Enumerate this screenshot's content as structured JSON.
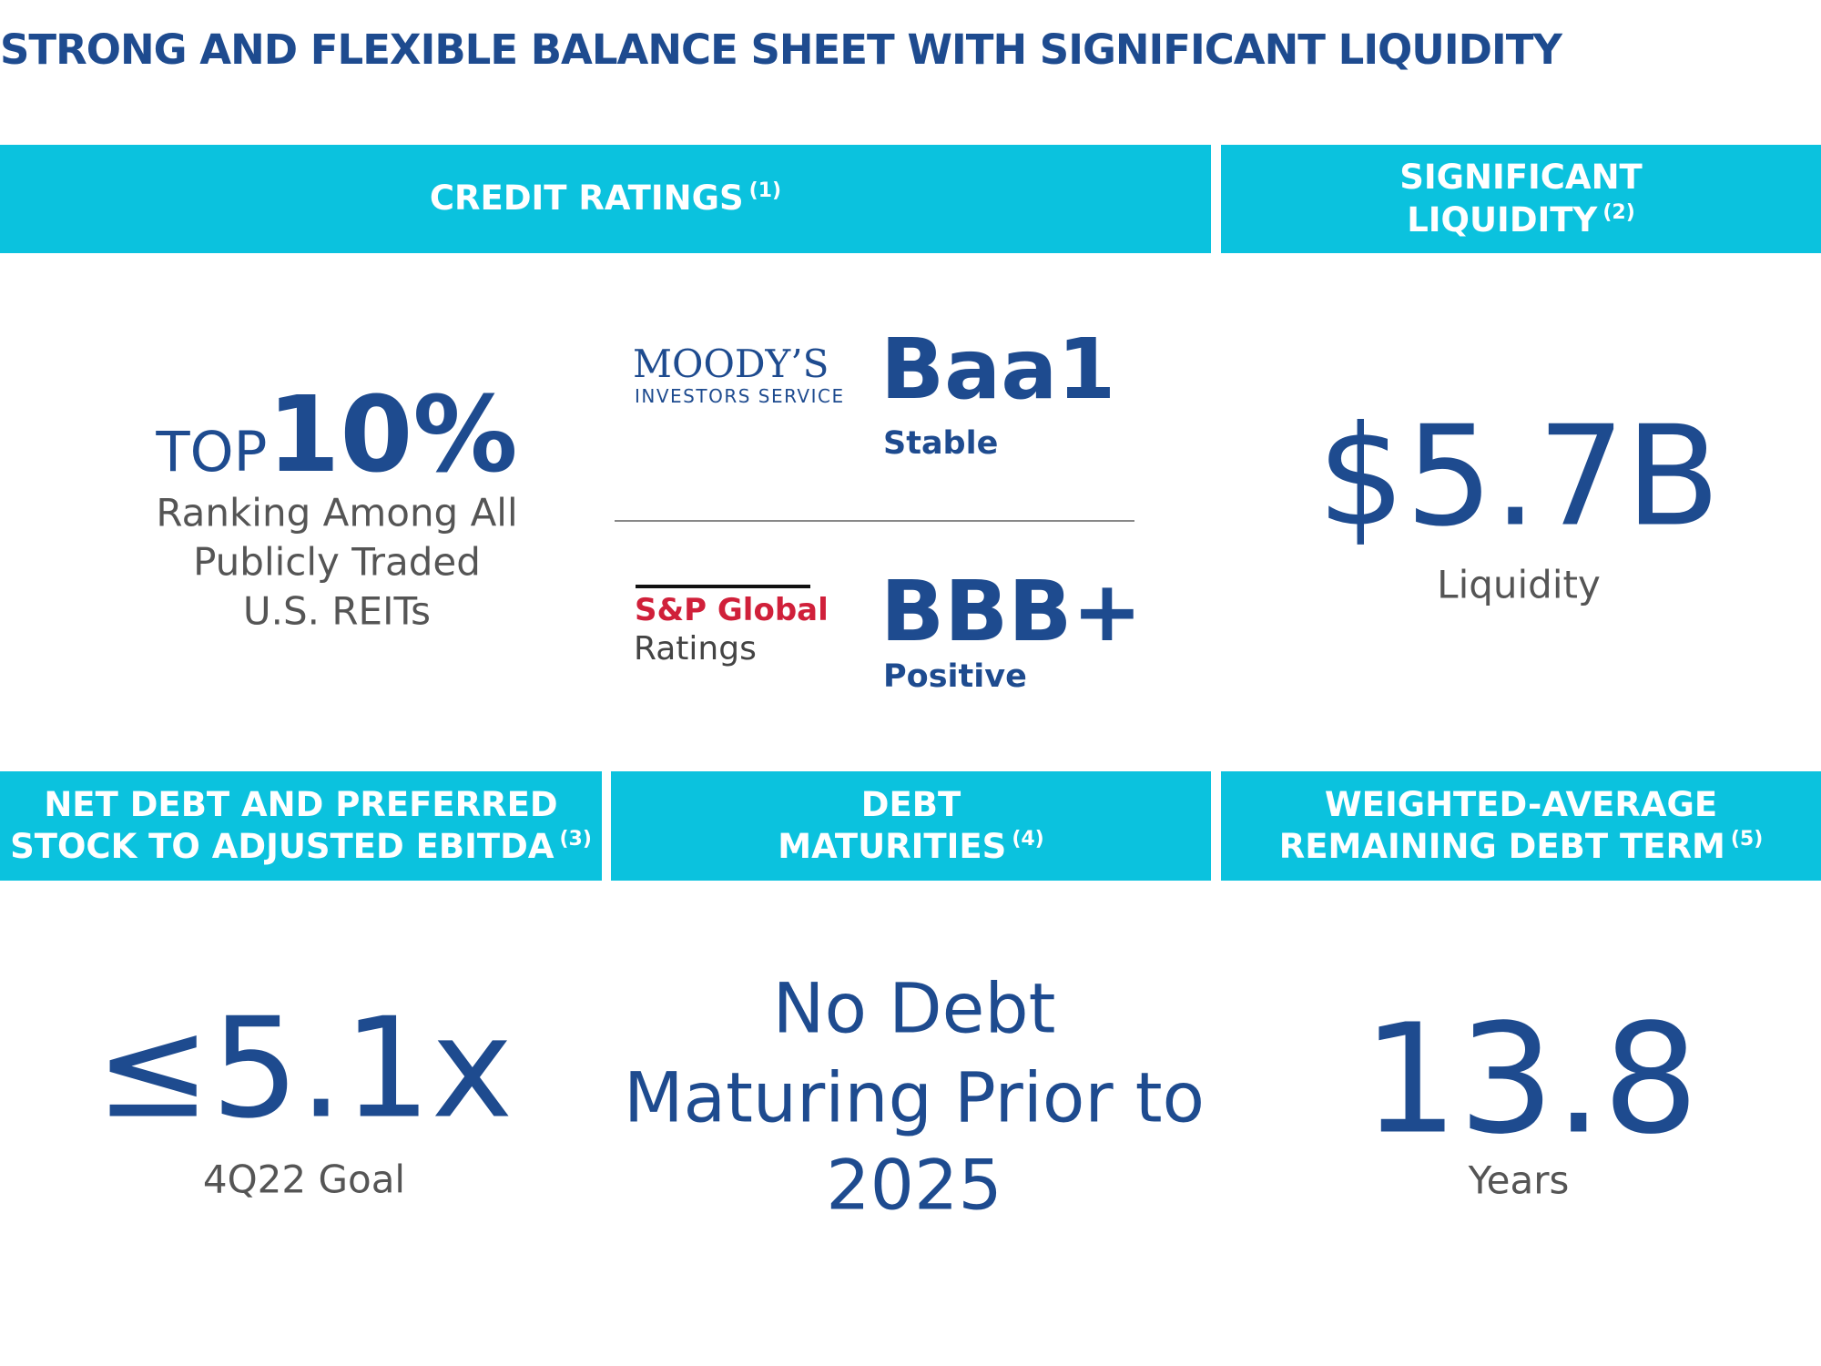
{
  "title": "STRONG AND FLEXIBLE BALANCE SHEET WITH SIGNIFICANT LIQUIDITY",
  "credit_ratings": {
    "header": {
      "lines": [
        "CREDIT RATINGS"
      ],
      "note": "(1)"
    },
    "ranking": {
      "prefix": "TOP",
      "value": "10%",
      "description": [
        "Ranking Among All",
        "Publicly Traded",
        "U.S. REITs"
      ]
    },
    "ratings": [
      {
        "agency": [
          "MOODY’S",
          "INVESTORS SERVICE"
        ],
        "rating": "Baa1",
        "outlook": "Stable"
      },
      {
        "agency": [
          "S&P Global",
          "Ratings"
        ],
        "rating": "BBB+",
        "outlook": "Positive"
      }
    ]
  },
  "liquidity": {
    "header": {
      "lines": [
        "SIGNIFICANT",
        "LIQUIDITY"
      ],
      "note": "(2)"
    },
    "value": "$5.7B",
    "label": "Liquidity"
  },
  "leverage": {
    "header": {
      "lines": [
        "NET DEBT AND PREFERRED",
        "STOCK TO ADJUSTED EBITDA"
      ],
      "note": "(3)"
    },
    "value": "≤5.1x",
    "label": "4Q22 Goal"
  },
  "maturities": {
    "header": {
      "lines": [
        "DEBT",
        "MATURITIES"
      ],
      "note": "(4)"
    },
    "value": [
      "No Debt",
      "Maturing Prior to",
      "2025"
    ]
  },
  "debt_term": {
    "header": {
      "lines": [
        "WEIGHTED-AVERAGE",
        "REMAINING DEBT TERM"
      ],
      "note": "(5)"
    },
    "value": "13.8",
    "label": "Years"
  }
}
